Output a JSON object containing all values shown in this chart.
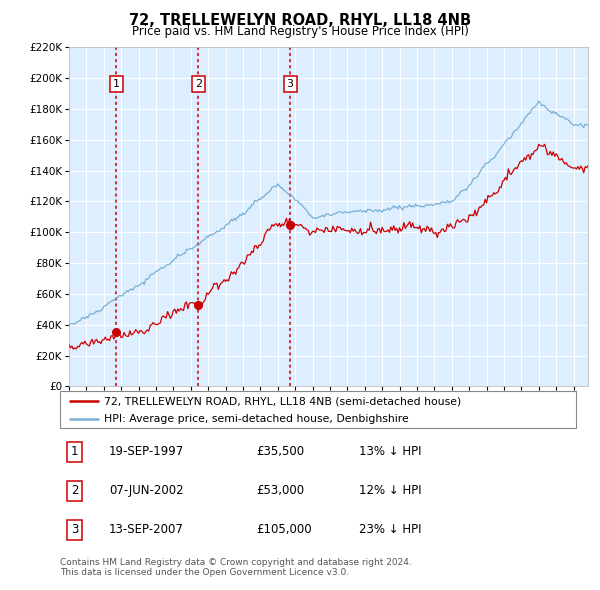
{
  "title": "72, TRELLEWELYN ROAD, RHYL, LL18 4NB",
  "subtitle": "Price paid vs. HM Land Registry's House Price Index (HPI)",
  "background_color": "#ffffff",
  "plot_bg_color": "#ddeeff",
  "hpi_color": "#7ab0d4",
  "price_color": "#cc0000",
  "marker_color": "#cc0000",
  "sale_year_nums": [
    1997.72,
    2002.44,
    2007.71
  ],
  "sale_prices": [
    35500,
    53000,
    105000
  ],
  "sale_labels": [
    "1",
    "2",
    "3"
  ],
  "sale_info": [
    {
      "label": "1",
      "date": "19-SEP-1997",
      "price": "£35,500",
      "pct": "13%",
      "dir": "↓",
      "ref": "HPI"
    },
    {
      "label": "2",
      "date": "07-JUN-2002",
      "price": "£53,000",
      "pct": "12%",
      "dir": "↓",
      "ref": "HPI"
    },
    {
      "label": "3",
      "date": "13-SEP-2007",
      "price": "£105,000",
      "pct": "23%",
      "dir": "↓",
      "ref": "HPI"
    }
  ],
  "legend_line1": "72, TRELLEWELYN ROAD, RHYL, LL18 4NB (semi-detached house)",
  "legend_line2": "HPI: Average price, semi-detached house, Denbighshire",
  "footer1": "Contains HM Land Registry data © Crown copyright and database right 2024.",
  "footer2": "This data is licensed under the Open Government Licence v3.0.",
  "ylim": [
    0,
    220000
  ],
  "ytick_step": 20000,
  "year_start": 1995,
  "year_end": 2024,
  "hpi_seed": 10,
  "red_seed": 77
}
